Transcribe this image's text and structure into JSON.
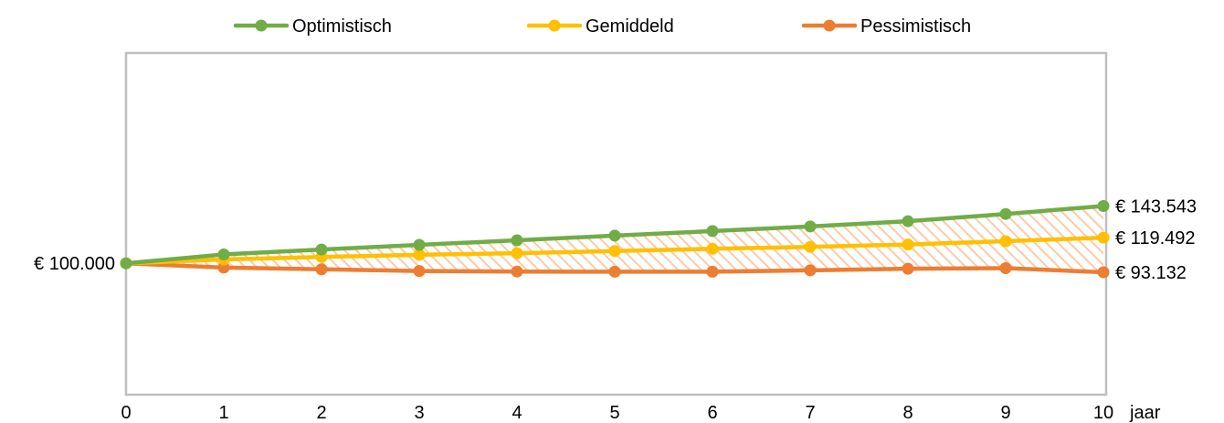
{
  "colors": {
    "optimistisch": "#70AD47",
    "gemiddeld": "#FFC000",
    "pessimistisch": "#ED7D31",
    "frame": "#BFBFBF",
    "hatch": "#F8CBAD"
  },
  "chart_data": {
    "type": "line",
    "title": "",
    "xlabel": "jaar",
    "ylabel": "",
    "x": [
      0,
      1,
      2,
      3,
      4,
      5,
      6,
      7,
      8,
      9,
      10
    ],
    "xticks": [
      "0",
      "1",
      "2",
      "3",
      "4",
      "5",
      "6",
      "7",
      "8",
      "9",
      "10"
    ],
    "ylim": [
      0,
      260000
    ],
    "grid": false,
    "legend": "top",
    "shaded_band": "between Pessimistisch and Optimistisch, diagonal hatch",
    "series": [
      {
        "name": "Optimistisch",
        "color": "#70AD47",
        "values": [
          100000,
          106700,
          110500,
          114000,
          117500,
          121000,
          124500,
          128000,
          132000,
          137500,
          143543
        ]
      },
      {
        "name": "Gemiddeld",
        "color": "#FFC000",
        "values": [
          100000,
          102900,
          104800,
          106400,
          107700,
          109300,
          111000,
          112500,
          114300,
          116800,
          119492
        ]
      },
      {
        "name": "Pessimistisch",
        "color": "#ED7D31",
        "values": [
          100000,
          96700,
          95400,
          94100,
          93700,
          93600,
          93600,
          94600,
          95900,
          96300,
          93132
        ]
      }
    ],
    "annotations": {
      "start_label": "€ 100.000",
      "end_labels": [
        "€ 143.543",
        "€ 119.492",
        "€ 93.132"
      ]
    }
  }
}
